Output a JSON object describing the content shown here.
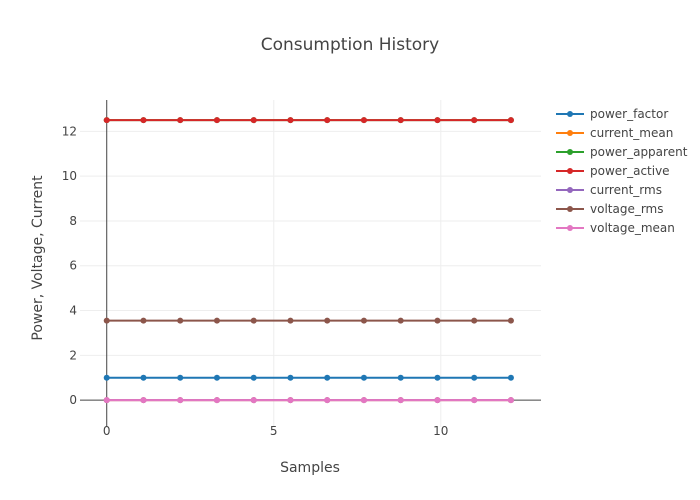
{
  "chart_data": {
    "type": "line",
    "title": "Consumption History",
    "xlabel": "Samples",
    "ylabel": "Power, Voltage, Current",
    "xlim": [
      -0.8,
      13.0
    ],
    "ylim": [
      -1.2,
      13.4
    ],
    "xticks": [
      0,
      5,
      10
    ],
    "yticks": [
      0,
      2,
      4,
      6,
      8,
      10,
      12
    ],
    "grid": true,
    "legend_position": "right",
    "x": [
      0,
      1.1,
      2.2,
      3.3,
      4.4,
      5.5,
      6.6,
      7.7,
      8.8,
      9.9,
      11.0,
      12.1
    ],
    "series": [
      {
        "name": "power_factor",
        "color": "#1f77b4",
        "values": [
          1,
          1,
          1,
          1,
          1,
          1,
          1,
          1,
          1,
          1,
          1,
          1
        ]
      },
      {
        "name": "current_mean",
        "color": "#ff7f0e",
        "values": [
          0,
          0,
          0,
          0,
          0,
          0,
          0,
          0,
          0,
          0,
          0,
          0
        ]
      },
      {
        "name": "power_apparent",
        "color": "#2ca02c",
        "values": [
          12.5,
          12.5,
          12.5,
          12.5,
          12.5,
          12.5,
          12.5,
          12.5,
          12.5,
          12.5,
          12.5,
          12.5
        ]
      },
      {
        "name": "power_active",
        "color": "#d62728",
        "values": [
          12.5,
          12.5,
          12.5,
          12.5,
          12.5,
          12.5,
          12.5,
          12.5,
          12.5,
          12.5,
          12.5,
          12.5
        ]
      },
      {
        "name": "current_rms",
        "color": "#9467bd",
        "values": [
          0,
          0,
          0,
          0,
          0,
          0,
          0,
          0,
          0,
          0,
          0,
          0
        ]
      },
      {
        "name": "voltage_rms",
        "color": "#8c564b",
        "values": [
          3.55,
          3.55,
          3.55,
          3.55,
          3.55,
          3.55,
          3.55,
          3.55,
          3.55,
          3.55,
          3.55,
          3.55
        ]
      },
      {
        "name": "voltage_mean",
        "color": "#e377c2",
        "values": [
          0,
          0,
          0,
          0,
          0,
          0,
          0,
          0,
          0,
          0,
          0,
          0
        ]
      }
    ]
  }
}
